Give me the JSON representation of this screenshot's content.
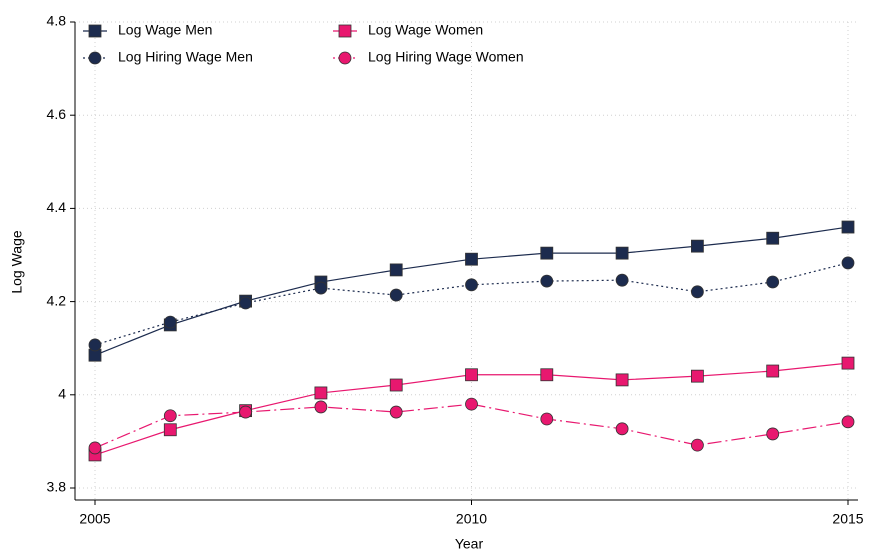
{
  "chart_data": {
    "type": "line",
    "x_label": "Year",
    "y_label": "Log Wage",
    "x": [
      2005,
      2006,
      2007,
      2008,
      2009,
      2010,
      2011,
      2012,
      2013,
      2014,
      2015
    ],
    "xlim": [
      2005,
      2015
    ],
    "xticks": [
      2005,
      2010,
      2015
    ],
    "ylim": [
      3.8,
      4.8
    ],
    "yticks": [
      3.8,
      4,
      4.2,
      4.4,
      4.6,
      4.8
    ],
    "grid": true,
    "legend": "top-left",
    "series": [
      {
        "name": "Log Wage Men",
        "color": "#1c2b4e",
        "marker": "square",
        "linestyle": "solid",
        "values": [
          4.085,
          4.15,
          4.201,
          4.242,
          4.268,
          4.291,
          4.304,
          4.304,
          4.319,
          4.336,
          4.36
        ]
      },
      {
        "name": "Log Hiring Wage Men",
        "color": "#1c2b4e",
        "marker": "circle",
        "linestyle": "dotted",
        "values": [
          4.107,
          4.156,
          4.197,
          4.229,
          4.214,
          4.236,
          4.244,
          4.246,
          4.221,
          4.242,
          4.283
        ]
      },
      {
        "name": "Log Wage Women",
        "color": "#e8186f",
        "marker": "square",
        "linestyle": "solid",
        "values": [
          3.871,
          3.925,
          3.966,
          4.004,
          4.021,
          4.043,
          4.043,
          4.032,
          4.04,
          4.051,
          4.068
        ]
      },
      {
        "name": "Log Hiring Wage Women",
        "color": "#e8186f",
        "marker": "circle",
        "linestyle": "dashdot",
        "values": [
          3.886,
          3.955,
          3.963,
          3.974,
          3.963,
          3.98,
          3.948,
          3.927,
          3.892,
          3.916,
          3.942
        ]
      }
    ]
  }
}
